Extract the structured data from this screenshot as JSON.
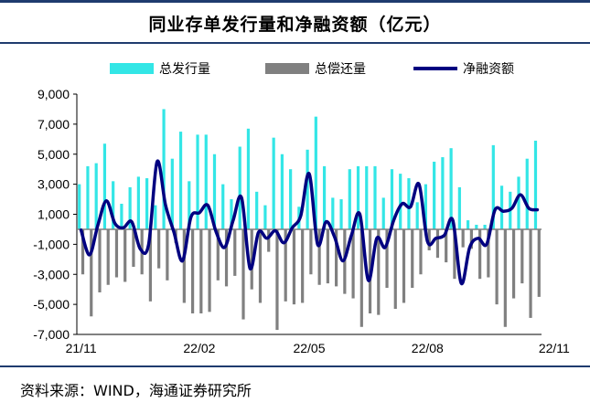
{
  "title": "同业存单发行量和净融资额（亿元）",
  "source": "资料来源：WIND，海通证券研究所",
  "colors": {
    "issuance": "#33E6E6",
    "repayment": "#808080",
    "net": "#000080",
    "border": "#1f3b6e"
  },
  "chart_data": {
    "type": "bar",
    "title": "同业存单发行量和净融资额（亿元）",
    "xlabel": "",
    "ylabel": "",
    "ylim": [
      -7000,
      9000
    ],
    "yticks": [
      9000,
      7000,
      5000,
      3000,
      1000,
      -1000,
      -3000,
      -5000,
      -7000
    ],
    "ytick_labels": [
      "9,000",
      "7,000",
      "5,000",
      "3,000",
      "1,000",
      "-1,000",
      "-3,000",
      "-5,000",
      "-7,000"
    ],
    "xtick_labels": [
      {
        "label": "21/11",
        "index": 0
      },
      {
        "label": "22/02",
        "index": 14
      },
      {
        "label": "22/05",
        "index": 27
      },
      {
        "label": "22/08",
        "index": 41
      },
      {
        "label": "22/11",
        "index": 56
      }
    ],
    "legend": [
      "总发行量",
      "总偿还量",
      "净融资额"
    ],
    "legend_position": "top",
    "series": [
      {
        "name": "总发行量",
        "type": "bar",
        "values": [
          3000,
          4200,
          4400,
          5700,
          3200,
          1700,
          2800,
          3500,
          3400,
          1600,
          8000,
          4700,
          6500,
          3200,
          6300,
          6300,
          5000,
          3000,
          2000,
          5500,
          6700,
          2500,
          1600,
          6100,
          5000,
          4000,
          1500,
          5300,
          7500,
          4200,
          2100,
          2000,
          4000,
          4200,
          4200,
          4200,
          2100,
          4000,
          3700,
          3400,
          1800,
          3000,
          4500,
          4800,
          5400,
          2800,
          600,
          300,
          300,
          5600,
          2900,
          2500,
          3500,
          4700,
          5900
        ]
      },
      {
        "name": "总偿还量",
        "type": "bar",
        "values": [
          -3000,
          -5800,
          -4200,
          -3700,
          -3200,
          -3500,
          -2500,
          -3000,
          -4800,
          -2600,
          -3400,
          -900,
          -4900,
          -5600,
          -5600,
          -5500,
          -3400,
          -3800,
          -3100,
          -6000,
          -4000,
          -4900,
          -1500,
          -6700,
          -4800,
          -5000,
          -4900,
          -3000,
          -3700,
          -3600,
          -3800,
          -4300,
          -4600,
          -6500,
          -5600,
          -5700,
          -3900,
          -5300,
          -4900,
          -3900,
          -3000,
          -1400,
          -1900,
          -2200,
          -3300,
          -1200,
          -1300,
          -3300,
          -3200,
          -5000,
          -6500,
          -4600,
          -3600,
          -5900,
          -4500
        ]
      },
      {
        "name": "净融资额",
        "type": "line",
        "values": [
          -50,
          -1700,
          300,
          1900,
          400,
          100,
          500,
          -1300,
          -1000,
          4500,
          1600,
          -200,
          -2100,
          800,
          1100,
          1600,
          -200,
          -1200,
          600,
          2100,
          -2600,
          -200,
          -600,
          -100,
          -900,
          100,
          900,
          3700,
          -1000,
          500,
          -500,
          -2100,
          -400,
          1000,
          -3400,
          -600,
          -1200,
          600,
          1700,
          1500,
          3000,
          -800,
          -600,
          -400,
          600,
          -3600,
          -1200,
          -600,
          -1000,
          1300,
          1200,
          1400,
          2300,
          1400,
          1300
        ]
      }
    ]
  }
}
